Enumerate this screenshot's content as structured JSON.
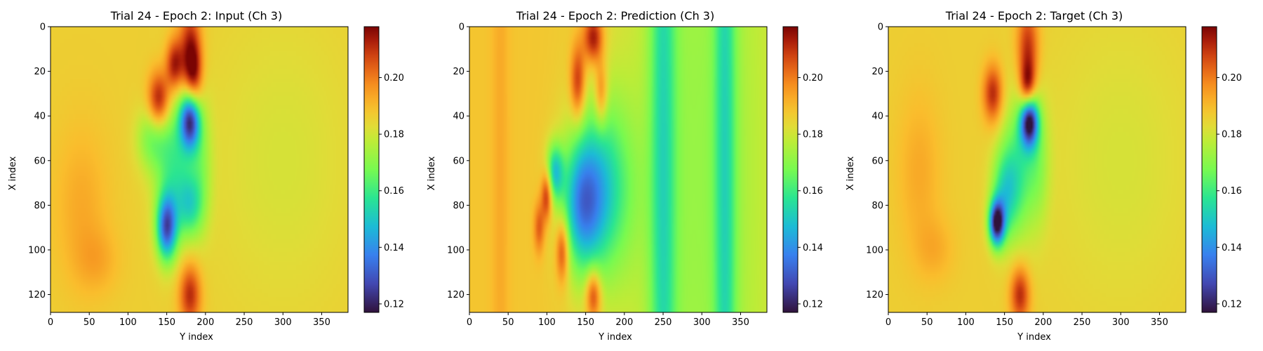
{
  "chart_data": [
    {
      "type": "heatmap",
      "title": "Trial 24 - Epoch 2: Input (Ch 3)",
      "xlabel": "Y index",
      "ylabel": "X index",
      "xlim": [
        0,
        384
      ],
      "ylim": [
        128,
        0
      ],
      "x_ticks": [
        0,
        50,
        100,
        150,
        200,
        250,
        300,
        350
      ],
      "y_ticks": [
        0,
        20,
        40,
        60,
        80,
        100,
        120
      ],
      "colormap": "turbo",
      "colorbar": {
        "min": 0.117,
        "max": 0.218,
        "ticks": [
          0.12,
          0.14,
          0.16,
          0.18,
          0.2
        ],
        "tick_labels": [
          "0.12",
          "0.14",
          "0.16",
          "0.18",
          "0.20"
        ]
      },
      "background_value": 0.186,
      "features": [
        {
          "y": 180,
          "x": 10,
          "sy": 10,
          "sx": 14,
          "value": 0.212
        },
        {
          "y": 140,
          "x": 33,
          "sy": 10,
          "sx": 9,
          "value": 0.218
        },
        {
          "y": 160,
          "x": 17,
          "sy": 8,
          "sx": 8,
          "value": 0.214
        },
        {
          "y": 185,
          "x": 22,
          "sy": 8,
          "sx": 10,
          "value": 0.208
        },
        {
          "y": 180,
          "x": 120,
          "sy": 10,
          "sx": 10,
          "value": 0.212
        },
        {
          "y": 180,
          "x": 42,
          "sy": 9,
          "sx": 9,
          "value": 0.13
        },
        {
          "y": 150,
          "x": 90,
          "sy": 9,
          "sx": 10,
          "value": 0.135
        },
        {
          "y": 160,
          "x": 62,
          "sy": 18,
          "sx": 22,
          "value": 0.162
        },
        {
          "y": 180,
          "x": 80,
          "sy": 12,
          "sx": 10,
          "value": 0.163
        },
        {
          "y": 130,
          "x": 50,
          "sy": 14,
          "sx": 10,
          "value": 0.17
        },
        {
          "y": 195,
          "x": 60,
          "sy": 10,
          "sx": 20,
          "value": 0.175
        },
        {
          "y": 300,
          "x": 60,
          "sy": 70,
          "sx": 50,
          "value": 0.181
        },
        {
          "y": 40,
          "x": 80,
          "sy": 25,
          "sx": 25,
          "value": 0.193
        },
        {
          "y": 60,
          "x": 105,
          "sy": 20,
          "sx": 10,
          "value": 0.192
        }
      ]
    },
    {
      "type": "heatmap",
      "title": "Trial 24 - Epoch 2: Prediction (Ch 3)",
      "xlabel": "Y index",
      "ylabel": "X index",
      "xlim": [
        0,
        384
      ],
      "ylim": [
        128,
        0
      ],
      "x_ticks": [
        0,
        50,
        100,
        150,
        200,
        250,
        300,
        350
      ],
      "y_ticks": [
        0,
        20,
        40,
        60,
        80,
        100,
        120
      ],
      "colormap": "turbo",
      "colorbar": {
        "min": 0.117,
        "max": 0.218,
        "ticks": [
          0.12,
          0.14,
          0.16,
          0.18,
          0.2
        ],
        "tick_labels": [
          "0.12",
          "0.14",
          "0.16",
          "0.18",
          "0.20"
        ]
      },
      "background_value": 0.188,
      "features": [
        {
          "y": 300,
          "x": 64,
          "sy": 80,
          "sx": 200,
          "value": 0.172
        },
        {
          "y": 250,
          "x": 64,
          "sy": 12,
          "sx": 200,
          "value": 0.166
        },
        {
          "y": 330,
          "x": 64,
          "sy": 10,
          "sx": 200,
          "value": 0.167
        },
        {
          "y": 170,
          "x": 72,
          "sy": 28,
          "sx": 28,
          "value": 0.157
        },
        {
          "y": 145,
          "x": 80,
          "sy": 18,
          "sx": 20,
          "value": 0.155
        },
        {
          "y": 110,
          "x": 65,
          "sy": 8,
          "sx": 9,
          "value": 0.155
        },
        {
          "y": 160,
          "x": 5,
          "sy": 9,
          "sx": 8,
          "value": 0.218
        },
        {
          "y": 140,
          "x": 25,
          "sy": 7,
          "sx": 12,
          "value": 0.214
        },
        {
          "y": 170,
          "x": 30,
          "sy": 6,
          "sx": 10,
          "value": 0.208
        },
        {
          "y": 100,
          "x": 75,
          "sy": 5,
          "sx": 8,
          "value": 0.216
        },
        {
          "y": 120,
          "x": 100,
          "sy": 6,
          "sx": 10,
          "value": 0.214
        },
        {
          "y": 160,
          "x": 120,
          "sy": 7,
          "sx": 8,
          "value": 0.216
        },
        {
          "y": 90,
          "x": 90,
          "sy": 5,
          "sx": 8,
          "value": 0.205
        },
        {
          "y": 40,
          "x": 64,
          "sy": 8,
          "sx": 200,
          "value": 0.193
        }
      ]
    },
    {
      "type": "heatmap",
      "title": "Trial 24 - Epoch 2: Target (Ch 3)",
      "xlabel": "Y index",
      "ylabel": "X index",
      "xlim": [
        0,
        384
      ],
      "ylim": [
        128,
        0
      ],
      "x_ticks": [
        0,
        50,
        100,
        150,
        200,
        250,
        300,
        350
      ],
      "y_ticks": [
        0,
        20,
        40,
        60,
        80,
        100,
        120
      ],
      "colormap": "turbo",
      "colorbar": {
        "min": 0.117,
        "max": 0.218,
        "ticks": [
          0.12,
          0.14,
          0.16,
          0.18,
          0.2
        ],
        "tick_labels": [
          "0.12",
          "0.14",
          "0.16",
          "0.18",
          "0.20"
        ]
      },
      "background_value": 0.186,
      "features": [
        {
          "y": 180,
          "x": 10,
          "sy": 10,
          "sx": 14,
          "value": 0.211
        },
        {
          "y": 135,
          "x": 30,
          "sy": 9,
          "sx": 9,
          "value": 0.212
        },
        {
          "y": 180,
          "x": 28,
          "sy": 7,
          "sx": 8,
          "value": 0.215
        },
        {
          "y": 170,
          "x": 120,
          "sy": 9,
          "sx": 9,
          "value": 0.212
        },
        {
          "y": 182,
          "x": 42,
          "sy": 8,
          "sx": 8,
          "value": 0.122
        },
        {
          "y": 140,
          "x": 88,
          "sy": 7,
          "sx": 7,
          "value": 0.122
        },
        {
          "y": 170,
          "x": 62,
          "sy": 16,
          "sx": 22,
          "value": 0.163
        },
        {
          "y": 150,
          "x": 75,
          "sy": 12,
          "sx": 14,
          "value": 0.16
        },
        {
          "y": 195,
          "x": 60,
          "sy": 10,
          "sx": 20,
          "value": 0.176
        },
        {
          "y": 300,
          "x": 60,
          "sy": 70,
          "sx": 50,
          "value": 0.181
        },
        {
          "y": 40,
          "x": 65,
          "sy": 20,
          "sx": 25,
          "value": 0.193
        },
        {
          "y": 60,
          "x": 100,
          "sy": 18,
          "sx": 10,
          "value": 0.192
        }
      ]
    }
  ]
}
